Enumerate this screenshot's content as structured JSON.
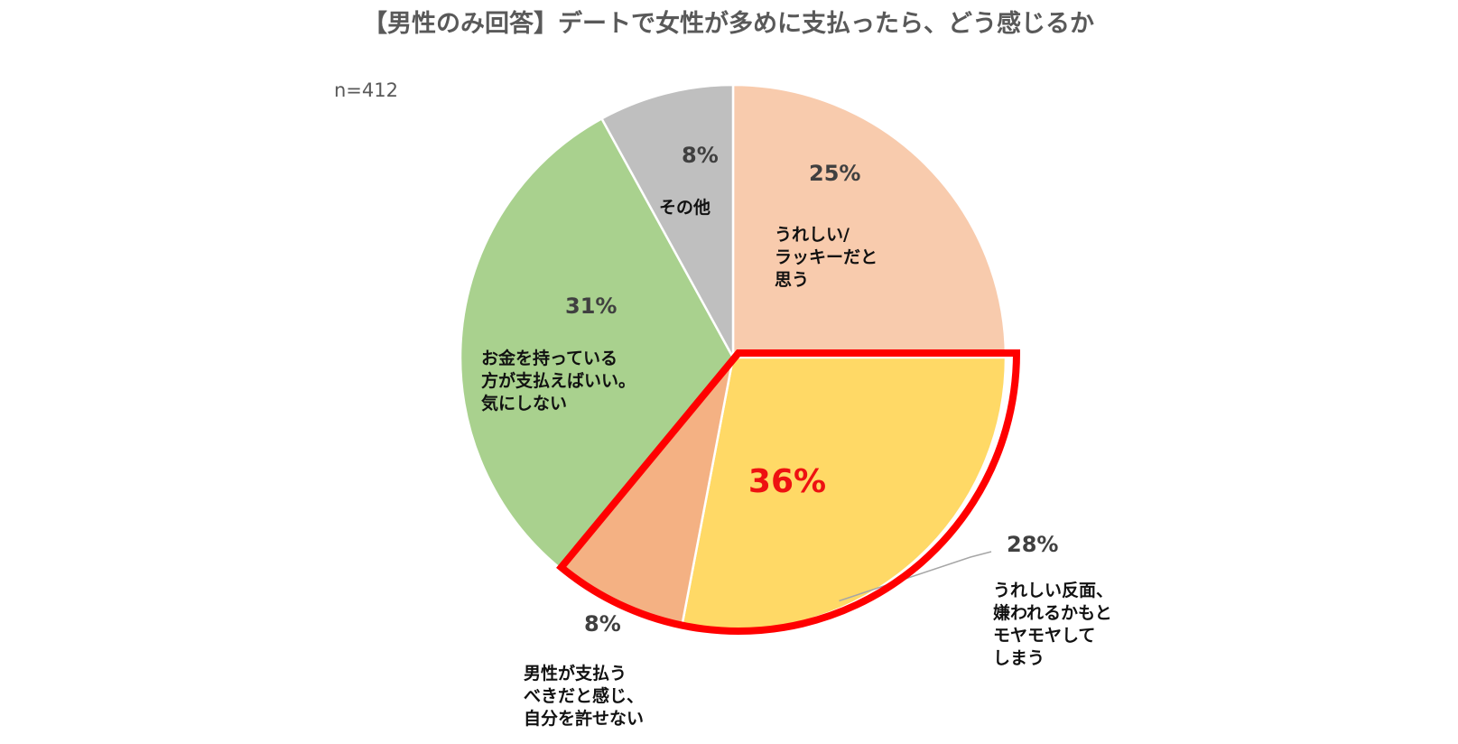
{
  "chart_data": {
    "type": "pie",
    "title": "【男性のみ回答】デートで女性が多めに支払ったら、どう感じるか",
    "note": "n=412",
    "highlight": {
      "label": "36%",
      "color": "#ff0000"
    },
    "slices": [
      {
        "value": 25,
        "label": "25%",
        "name": [
          "うれしい/",
          "ラッキーだと",
          "思う"
        ],
        "color": "#F8CBAD"
      },
      {
        "value": 28,
        "label": "28%",
        "name": [
          "うれしい反面、",
          "嫌われるかもと",
          "モヤモヤして",
          "しまう"
        ],
        "color": "#FFD966"
      },
      {
        "value": 8,
        "label": "8%",
        "name": [
          "男性が支払う",
          "べきだと感じ、",
          "自分を許せない"
        ],
        "color": "#F4B183"
      },
      {
        "value": 31,
        "label": "31%",
        "name": [
          "お金を持っている",
          "方が支払えばいい。",
          "気にしない"
        ],
        "color": "#A9D18E"
      },
      {
        "value": 8,
        "label": "8%",
        "name": [
          "その他"
        ],
        "color": "#BFBFBF"
      }
    ]
  }
}
